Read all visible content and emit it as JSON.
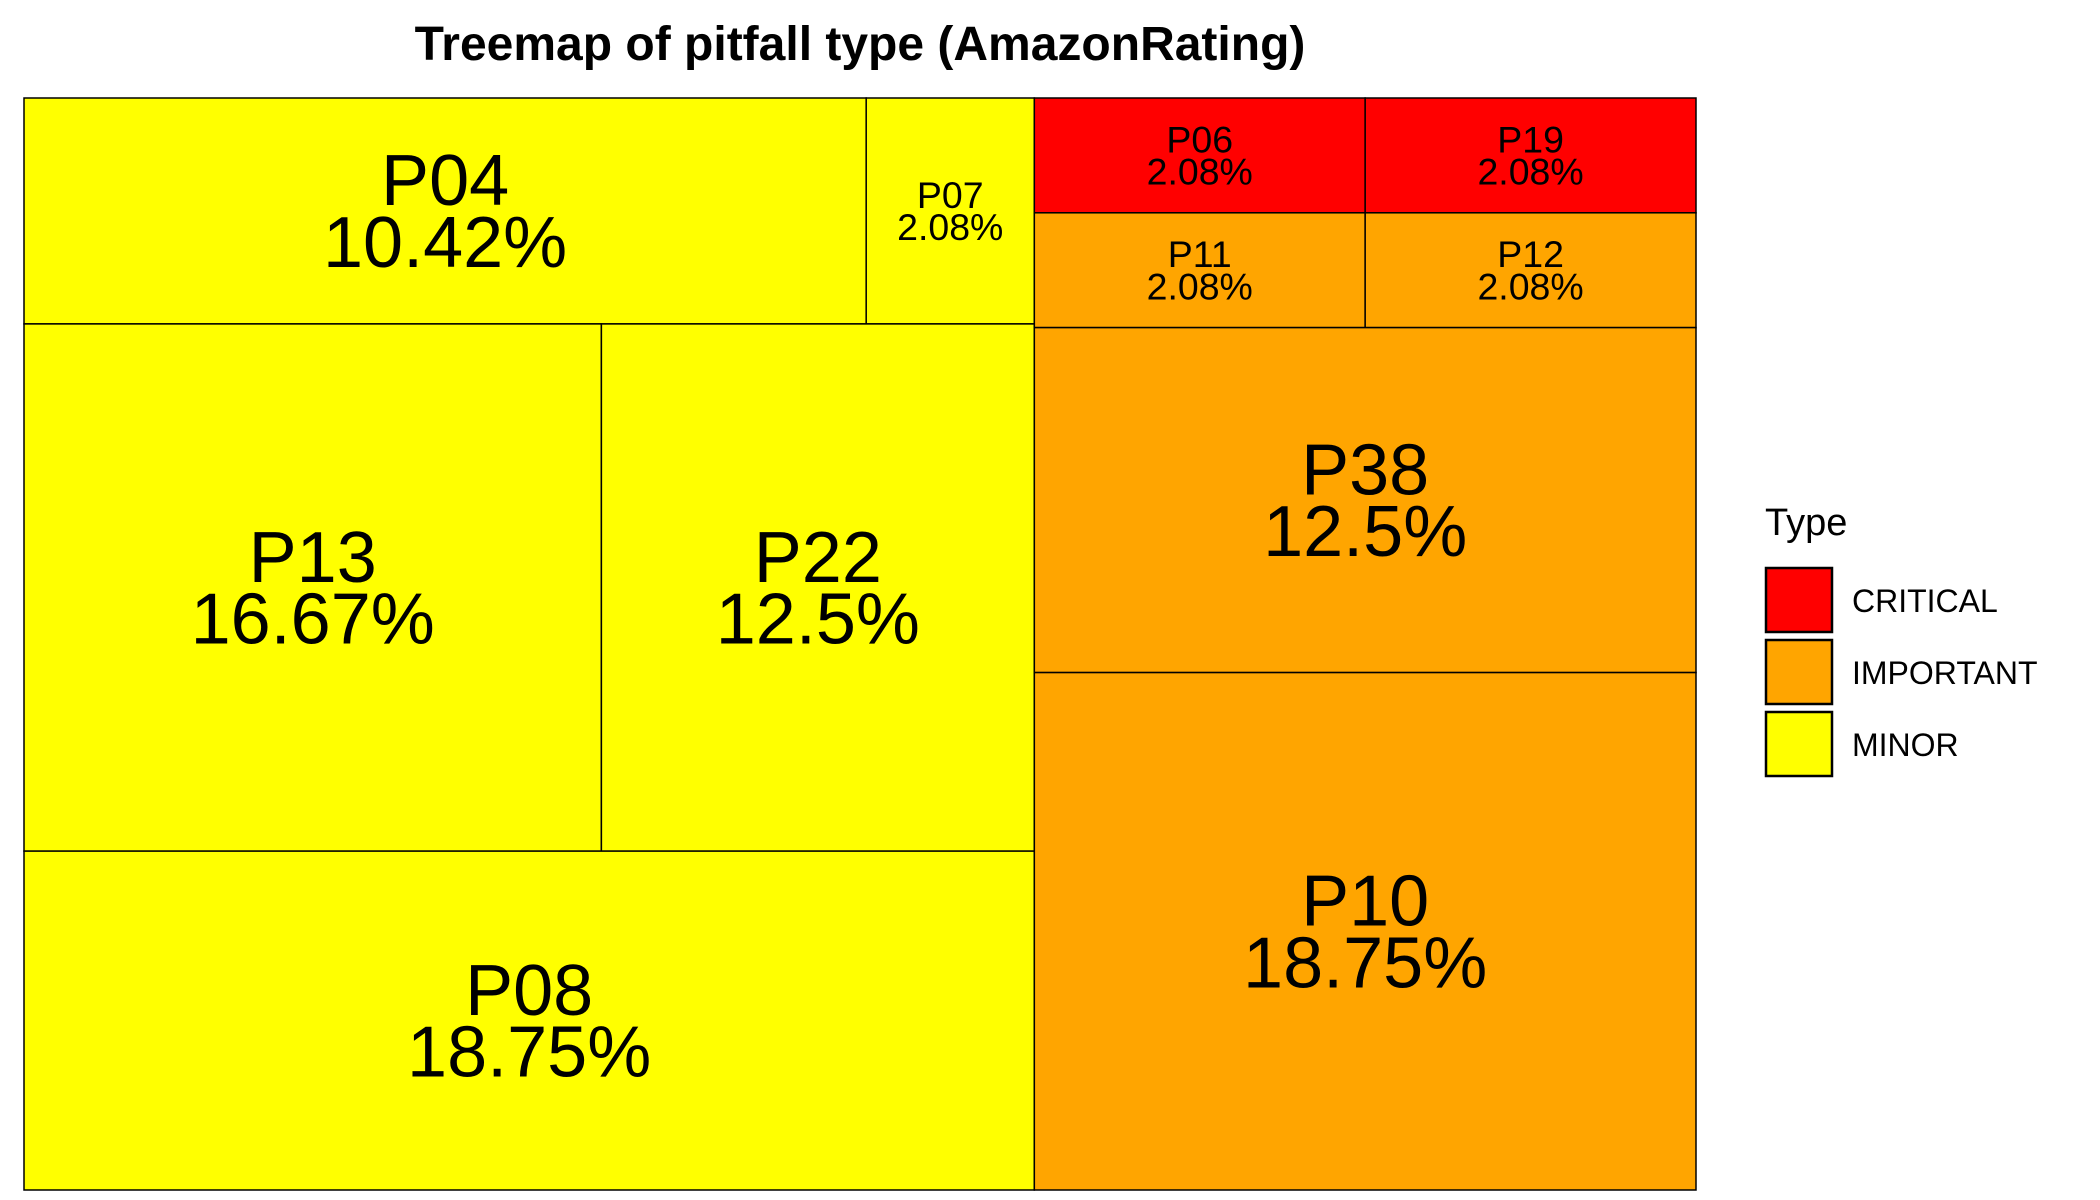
{
  "chart_data": {
    "type": "treemap",
    "title": "Treemap of pitfall type (AmazonRating)",
    "value_unit": "%",
    "legend": {
      "title": "Type",
      "position": "right",
      "entries": [
        {
          "label": "CRITICAL",
          "color": "#ff0000"
        },
        {
          "label": "IMPORTANT",
          "color": "#ffa500"
        },
        {
          "label": "MINOR",
          "color": "#ffff00"
        }
      ]
    },
    "groups": [
      {
        "type": "MINOR",
        "color": "#ffff00",
        "items": [
          {
            "name": "P08",
            "value": 18.75,
            "label": "18.75%"
          },
          {
            "name": "P13",
            "value": 16.67,
            "label": "16.67%"
          },
          {
            "name": "P22",
            "value": 12.5,
            "label": "12.5%"
          },
          {
            "name": "P04",
            "value": 10.42,
            "label": "10.42%"
          },
          {
            "name": "P07",
            "value": 2.08,
            "label": "2.08%"
          }
        ]
      },
      {
        "type": "IMPORTANT",
        "color": "#ffa500",
        "items": [
          {
            "name": "P10",
            "value": 18.75,
            "label": "18.75%"
          },
          {
            "name": "P38",
            "value": 12.5,
            "label": "12.5%"
          },
          {
            "name": "P11",
            "value": 2.08,
            "label": "2.08%"
          },
          {
            "name": "P12",
            "value": 2.08,
            "label": "2.08%"
          }
        ]
      },
      {
        "type": "CRITICAL",
        "color": "#ff0000",
        "items": [
          {
            "name": "P06",
            "value": 2.08,
            "label": "2.08%"
          },
          {
            "name": "P19",
            "value": 2.08,
            "label": "2.08%"
          }
        ]
      }
    ]
  }
}
